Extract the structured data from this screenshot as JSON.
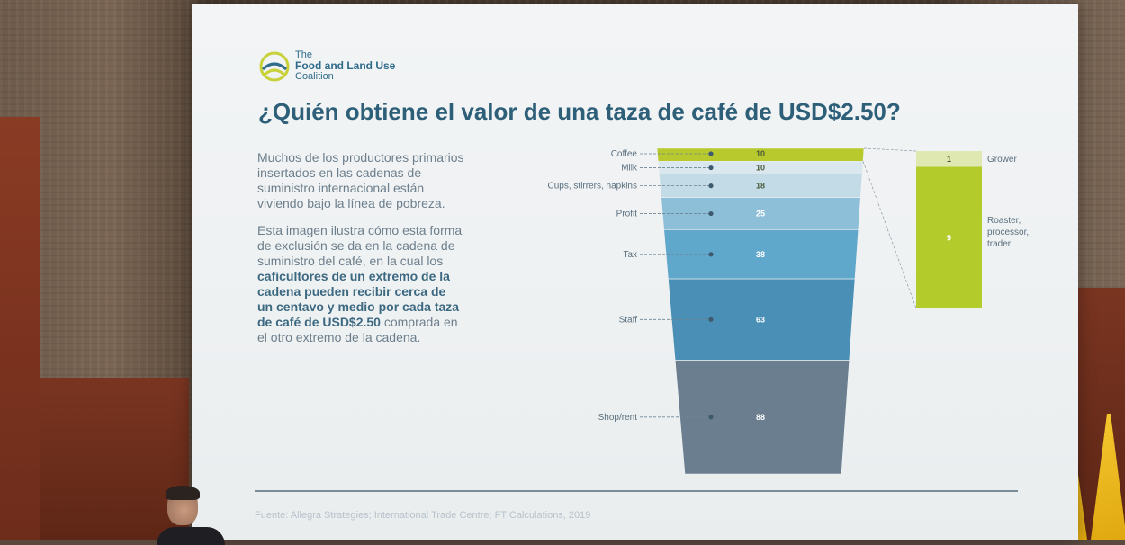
{
  "slide": {
    "logo": {
      "line1": "The",
      "line2": "Food and Land Use",
      "line3": "Coalition",
      "icon": "coalition-logo-icon",
      "colors": {
        "yellow": "#c9d13a",
        "blue": "#2f6b8a"
      }
    },
    "title": "¿Quién obtiene el valor de una taza de café de USD$2.50?",
    "paragraph1": "Muchos de los productores primarios insertados en las cadenas de suministro internacional están viviendo bajo la línea de pobreza.",
    "paragraph2": {
      "pre": "Esta imagen ilustra cómo esta forma de exclusión se da en la cadena de suministro del café, en la cual los ",
      "bold": "caficultores de un extremo de la cadena pueden recibir cerca de un centavo y medio por cada taza de café de USD$2.50",
      "post": " comprada en el otro extremo de la cadena."
    },
    "source": "Fuente: Allegra Strategies; International Trade Centre; FT Calculations, 2019"
  },
  "chart_data": {
    "type": "bar",
    "categories": [
      "Coffee",
      "Milk",
      "Cups, stirrers, napkins",
      "Profit",
      "Tax",
      "Staff",
      "Shop/rent"
    ],
    "values": [
      10,
      10,
      18,
      25,
      38,
      63,
      88
    ],
    "colors": [
      "#b7c92d",
      "#dbe7ee",
      "#c3dbe7",
      "#8ebfd9",
      "#5fa7cb",
      "#4a8fb5",
      "#6a7e8f"
    ],
    "breakdown": {
      "categories": [
        "Grower",
        "Roaster, processor, trader"
      ],
      "values": [
        1,
        9
      ],
      "colors": [
        "#dfe8b0",
        "#b3cc2c"
      ]
    }
  }
}
